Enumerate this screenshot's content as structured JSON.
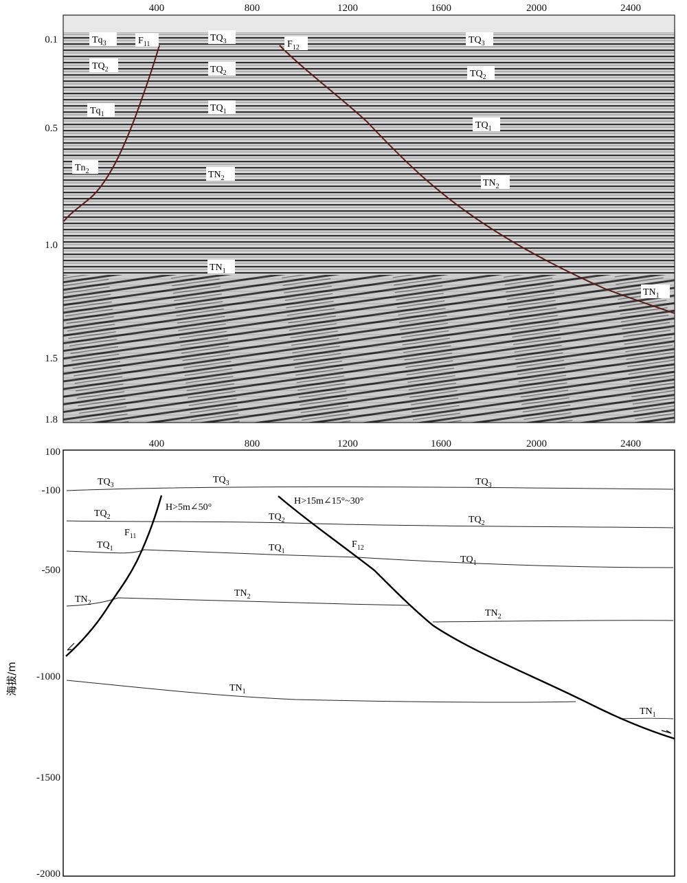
{
  "seismic_panel": {
    "x_ticks": [
      "400",
      "800",
      "1200",
      "1600",
      "2000",
      "2400"
    ],
    "y_ticks": [
      "0.1",
      "0.5",
      "1.0",
      "1.5",
      "1.8"
    ],
    "labels": [
      {
        "base": "Tq",
        "sub": "3"
      },
      {
        "base": "F",
        "sub": "11"
      },
      {
        "base": "TQ",
        "sub": "3"
      },
      {
        "base": "F",
        "sub": "12"
      },
      {
        "base": "TQ",
        "sub": "3"
      },
      {
        "base": "TQ",
        "sub": "2"
      },
      {
        "base": "TQ",
        "sub": "2"
      },
      {
        "base": "TQ",
        "sub": "2"
      },
      {
        "base": "Tq",
        "sub": "1"
      },
      {
        "base": "TQ",
        "sub": "1"
      },
      {
        "base": "TQ",
        "sub": "1"
      },
      {
        "base": "Tn",
        "sub": "2"
      },
      {
        "base": "TN",
        "sub": "2"
      },
      {
        "base": "TN",
        "sub": "2"
      },
      {
        "base": "TN",
        "sub": "1"
      },
      {
        "base": "TN",
        "sub": "1"
      }
    ]
  },
  "interpretation_panel": {
    "x_ticks": [
      "400",
      "800",
      "1200",
      "1600",
      "2000",
      "2400"
    ],
    "y_ticks": [
      "100",
      "-100",
      "-500",
      "-1000",
      "-1500",
      "-2000"
    ],
    "y_label": "海拔/m",
    "labels": [
      {
        "base": "TQ",
        "sub": "3"
      },
      {
        "base": "TQ",
        "sub": "3"
      },
      {
        "base": "TQ",
        "sub": "3"
      },
      {
        "base": "TQ",
        "sub": "2"
      },
      {
        "base": "TQ",
        "sub": "2"
      },
      {
        "base": "TQ",
        "sub": "2"
      },
      {
        "base": "F",
        "sub": "11"
      },
      {
        "base": "F",
        "sub": "12"
      },
      {
        "base": "TQ",
        "sub": "1"
      },
      {
        "base": "TQ",
        "sub": "1"
      },
      {
        "base": "TQ",
        "sub": "1"
      },
      {
        "base": "TN",
        "sub": "2"
      },
      {
        "base": "TN",
        "sub": "2"
      },
      {
        "base": "TN",
        "sub": "2"
      },
      {
        "base": "TN",
        "sub": "1"
      },
      {
        "base": "TN",
        "sub": "1"
      }
    ],
    "fault_annotations": [
      {
        "text": "H>5m∠50°"
      },
      {
        "text": "H>15m∠15°~30°"
      }
    ]
  }
}
